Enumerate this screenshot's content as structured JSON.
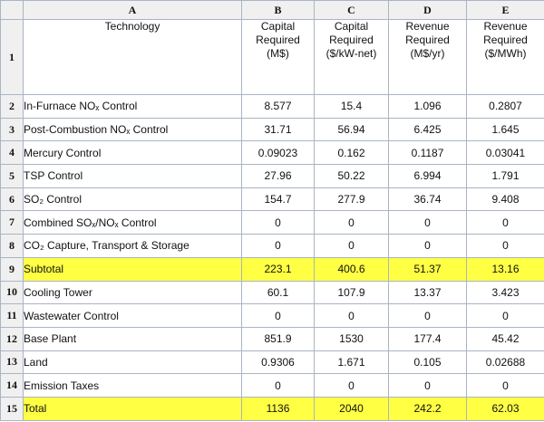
{
  "columns": [
    "A",
    "B",
    "C",
    "D",
    "E"
  ],
  "header_row": {
    "row_number": "1",
    "technology": "Technology",
    "b": [
      "Capital",
      "Required",
      "(M$)"
    ],
    "c": [
      "Capital",
      "Required",
      "($/kW-net)"
    ],
    "d": [
      "Revenue",
      "Required",
      "(M$/yr)"
    ],
    "e": [
      "Revenue",
      "Required",
      "($/MWh)"
    ]
  },
  "rows": [
    {
      "n": "2",
      "name": "In-Furnace NOₓ Control",
      "b": "8.577",
      "c": "15.4",
      "d": "1.096",
      "e": "0.2807"
    },
    {
      "n": "3",
      "name": "Post-Combustion NOₓ Control",
      "b": "31.71",
      "c": "56.94",
      "d": "6.425",
      "e": "1.645"
    },
    {
      "n": "4",
      "name": "Mercury Control",
      "b": "0.09023",
      "c": "0.162",
      "d": "0.1187",
      "e": "0.03041"
    },
    {
      "n": "5",
      "name": "TSP Control",
      "b": "27.96",
      "c": "50.22",
      "d": "6.994",
      "e": "1.791"
    },
    {
      "n": "6",
      "name": "SO₂ Control",
      "b": "154.7",
      "c": "277.9",
      "d": "36.74",
      "e": "9.408"
    },
    {
      "n": "7",
      "name": "Combined SOₓ/NOₓ Control",
      "b": "0",
      "c": "0",
      "d": "0",
      "e": "0"
    },
    {
      "n": "8",
      "name": "CO₂ Capture, Transport & Storage",
      "b": "0",
      "c": "0",
      "d": "0",
      "e": "0"
    },
    {
      "n": "9",
      "name": "Subtotal",
      "b": "223.1",
      "c": "400.6",
      "d": "51.37",
      "e": "13.16"
    },
    {
      "n": "10",
      "name": "Cooling Tower",
      "b": "60.1",
      "c": "107.9",
      "d": "13.37",
      "e": "3.423"
    },
    {
      "n": "11",
      "name": "Wastewater Control",
      "b": "0",
      "c": "0",
      "d": "0",
      "e": "0"
    },
    {
      "n": "12",
      "name": "Base Plant",
      "b": "851.9",
      "c": "1530",
      "d": "177.4",
      "e": "45.42"
    },
    {
      "n": "13",
      "name": "Land",
      "b": "0.9306",
      "c": "1.671",
      "d": "0.105",
      "e": "0.02688"
    },
    {
      "n": "14",
      "name": "Emission Taxes",
      "b": "0",
      "c": "0",
      "d": "0",
      "e": "0"
    },
    {
      "n": "15",
      "name": "Total",
      "b": "1136",
      "c": "2040",
      "d": "242.2",
      "e": "62.03"
    }
  ],
  "highlight_color": "#ffff44"
}
